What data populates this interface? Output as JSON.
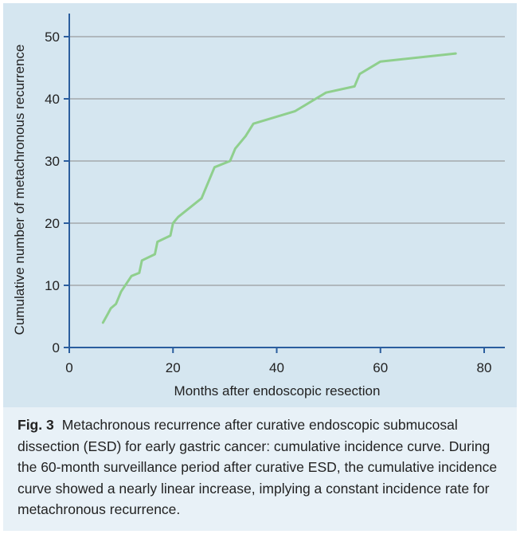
{
  "chart_data": {
    "type": "line",
    "xlabel": "Months after endoscopic resection",
    "ylabel": "Cumulative number of metachronous recurrence",
    "xlim": [
      0,
      80
    ],
    "ylim": [
      0,
      50
    ],
    "xticks": [
      0,
      20,
      40,
      60,
      80
    ],
    "yticks": [
      0,
      10,
      20,
      30,
      40,
      50
    ],
    "grid": "horizontal",
    "line_color": "#8fcf8d",
    "series": [
      {
        "x": [
          6.5,
          7.5,
          8.0,
          9.0,
          9.5,
          10.0,
          12.0,
          13.5,
          14.0,
          16.5,
          17.0,
          19.5,
          20.0,
          21.0,
          22.5,
          25.5,
          28.0,
          31.0,
          32.0,
          34.0,
          35.5,
          43.5,
          49.5,
          55.0,
          56.0,
          60.0,
          74.5
        ],
        "y": [
          4,
          5.5,
          6.3,
          7.0,
          8.0,
          9.0,
          11.5,
          12.0,
          14.0,
          15.0,
          17.0,
          18.0,
          20.0,
          21.0,
          22.0,
          24.0,
          29.0,
          30.0,
          32.0,
          34.0,
          36.0,
          38.0,
          41.0,
          42.0,
          44.0,
          46.0,
          47.3
        ]
      }
    ]
  },
  "caption": {
    "label": "Fig. 3",
    "text": "Metachronous recurrence after curative endoscopic submucosal dissection (ESD) for early gastric cancer: cumulative incidence curve. During the 60-month surveillance period after curative ESD, the cumulative incidence curve showed a nearly linear increase, implying a constant incidence rate for metachronous recurrence."
  }
}
